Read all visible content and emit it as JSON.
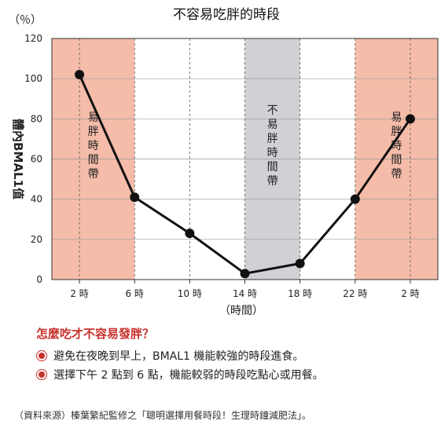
{
  "chart_data": {
    "type": "line",
    "title": "不容易吃胖的時段",
    "y_unit": "（％）",
    "ylabel": "體內BMAL1值",
    "xlabel": "（時間）",
    "ylim": [
      0,
      120
    ],
    "yticks": [
      0,
      20,
      40,
      60,
      80,
      100,
      120
    ],
    "x_ticks": [
      "2 時",
      "6 時",
      "10 時",
      "14 時",
      "18 時",
      "22 時",
      "2 時"
    ],
    "x_tick_hours": [
      2,
      6,
      10,
      14,
      18,
      22,
      26
    ],
    "xlim": [
      0,
      28
    ],
    "series": [
      {
        "points": [
          {
            "x": 2,
            "y": 102
          },
          {
            "x": 6,
            "y": 41
          },
          {
            "x": 10,
            "y": 23
          },
          {
            "x": 14,
            "y": 3
          },
          {
            "x": 18,
            "y": 8
          },
          {
            "x": 22,
            "y": 40
          },
          {
            "x": 26,
            "y": 80
          }
        ]
      }
    ],
    "bands": [
      {
        "label": "易胖時間帶",
        "x_start": 0,
        "x_end": 6,
        "color": "#f4bca9"
      },
      {
        "label": "不易胖時間帶",
        "x_start": 14,
        "x_end": 18,
        "color": "#cfd1d4"
      },
      {
        "label": "易胖時間帶",
        "x_start": 22,
        "x_end": 28,
        "color": "#f4bca9"
      }
    ],
    "grid": true
  },
  "tips": {
    "title": "怎麼吃才不容易發胖？",
    "items": [
      "避免在夜晚到早上，BMAL1 機能較強的時段進食。",
      "選擇下午 2 點到 6 點，機能較弱的時段吃點心或用餐。"
    ]
  },
  "source": "（資料來源）榛葉繁紀監修之「聰明選擇用餐時段！生理時鐘減肥法」。"
}
